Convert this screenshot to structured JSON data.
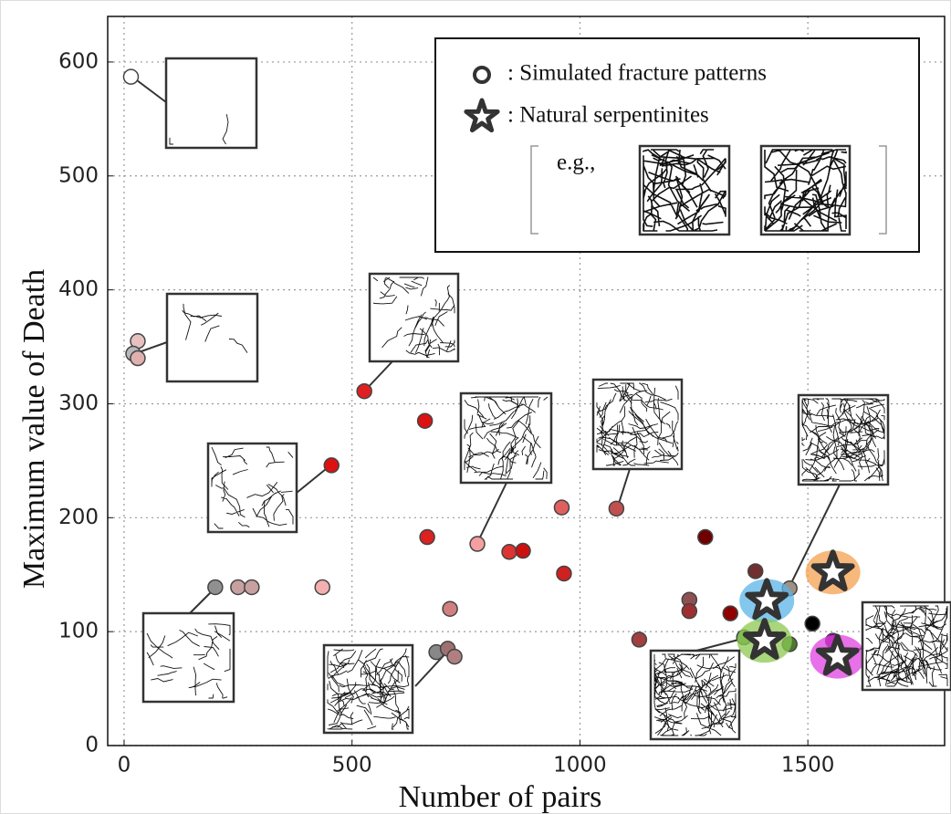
{
  "chart_data": {
    "type": "scatter",
    "xlabel": "Number of pairs",
    "ylabel": "Maximum value of Death",
    "xlim": [
      -36,
      1800
    ],
    "ylim": [
      0,
      640
    ],
    "xticks": [
      0,
      500,
      1000,
      1500
    ],
    "yticks": [
      0,
      100,
      200,
      300,
      400,
      500,
      600
    ],
    "grid": true,
    "legend_position": "upper right",
    "legend_note": "e.g.,",
    "series": [
      {
        "name": ": Simulated fracture patterns",
        "marker": "circle",
        "x": [
          15,
          30,
          20,
          30,
          200,
          250,
          280,
          435,
          455,
          527,
          660,
          665,
          685,
          710,
          725,
          715,
          775,
          845,
          875,
          960,
          965,
          1080,
          1130,
          1240,
          1240,
          1275,
          1330,
          1385,
          1360,
          1460,
          1460,
          1510,
          1555
        ],
        "y": [
          587,
          355,
          344,
          340,
          139,
          139,
          139,
          139,
          246,
          311,
          285,
          183,
          82,
          85,
          78,
          120,
          177,
          170,
          171,
          209,
          151,
          208,
          93,
          128,
          118,
          183,
          116,
          153,
          95,
          89,
          138,
          107,
          92
        ],
        "colors": [
          "#ffffff",
          "#e8c0c0",
          "#b8b8b8",
          "#e0b0b0",
          "#909090",
          "#c8a0a0",
          "#c8a0a0",
          "#f4b0b0",
          "#dd1111",
          "#e02020",
          "#dd1111",
          "#dd2020",
          "#888888",
          "#a07070",
          "#b08080",
          "#d08080",
          "#f4a0a0",
          "#dd3333",
          "#cc1111",
          "#e06060",
          "#d02020",
          "#c05050",
          "#a04040",
          "#905050",
          "#a03030",
          "#700000",
          "#900000",
          "#703030",
          "#6a9a50",
          "#4a7a30",
          "#a09080",
          "#000000",
          "#880088"
        ]
      },
      {
        "name": ": Natural serpentinites",
        "marker": "star",
        "x": [
          1410,
          1555,
          1405,
          1565
        ],
        "y": [
          127,
          152,
          92,
          78
        ],
        "colors": [
          "#5ab4e8",
          "#f4a050",
          "#8cc850",
          "#e040e0"
        ]
      }
    ]
  }
}
